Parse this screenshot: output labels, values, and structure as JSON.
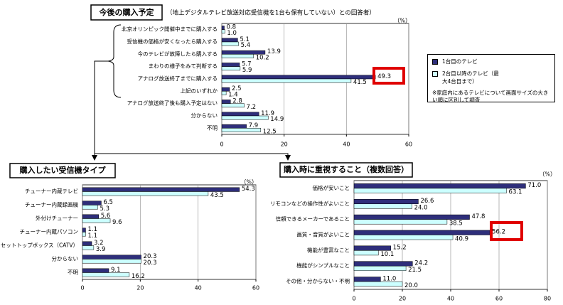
{
  "chart_data": [
    {
      "type": "bar",
      "orientation": "horizontal",
      "title": "今後の購入予定",
      "subtitle": "（地上デジタルテレビ放送対応受信機を1台も保有していない）との回答者）",
      "unit_label": "（%）",
      "categories": [
        "北京オリンピック開催中までに購入する",
        "受信機の価格が安くなったら購入する",
        "今のテレビが故障したら購入する",
        "まわりの様子をみて判断する",
        "アナログ放送終了までに購入する",
        "上記のいずれか",
        "アナログ放送終了後も購入予定はない",
        "分からない",
        "不明"
      ],
      "series": [
        {
          "name": "1台目のテレビ",
          "color": "#2e2e7a",
          "values": [
            0.8,
            5.1,
            13.9,
            5.7,
            49.3,
            2.5,
            2.8,
            11.9,
            7.9
          ],
          "value_labels": [
            "0.8",
            "5.1",
            "13.9",
            "5.7",
            "49.3",
            "2.5",
            "2.8",
            "11.9",
            "7.9"
          ]
        },
        {
          "name": "2台目以降のテレビ（最大4台目まで）",
          "color": "#ccffff",
          "values": [
            1.0,
            5.4,
            10.2,
            5.9,
            41.5,
            1.4,
            7.2,
            14.9,
            12.5
          ],
          "value_labels": [
            "1.0",
            "5.4",
            "10.2",
            "5.9",
            "41.5",
            "1.4",
            "7.2",
            "14.9",
            "12.5"
          ]
        }
      ],
      "note": "※家庭内にあるテレビについて画面サイズの大きい順に区別して調査",
      "xlim": [
        0,
        60
      ],
      "xticks": [
        0,
        20,
        40,
        60
      ],
      "grid": true
    },
    {
      "type": "bar",
      "orientation": "horizontal",
      "title": "購入したい受信機タイプ",
      "unit_label": "（%）",
      "categories": [
        "チューナー内蔵テレビ",
        "チューナー内蔵録画機",
        "外付けチューナー",
        "チューナー内蔵パソコン",
        "セットトップボックス（CATV）",
        "分からない",
        "不明"
      ],
      "series": [
        {
          "color": "#2e2e7a",
          "values": [
            54.3,
            6.5,
            5.6,
            1.1,
            3.2,
            20.3,
            9.1
          ],
          "value_labels": [
            "54.3",
            "6.5",
            "5.6",
            "1.1",
            "3.2",
            "20.3",
            "9.1"
          ]
        },
        {
          "color": "#ccffff",
          "values": [
            43.5,
            5.3,
            9.6,
            1.1,
            3.9,
            20.3,
            16.2
          ],
          "value_labels": [
            "43.5",
            "5.3",
            "9.6",
            "1.1",
            "3.9",
            "20.3",
            "16.2"
          ]
        }
      ],
      "xlim": [
        0,
        60
      ],
      "xticks": [
        0,
        20,
        40,
        60
      ],
      "grid": true
    },
    {
      "type": "bar",
      "orientation": "horizontal",
      "title": "購入時に重視すること（複数回答）",
      "unit_label": "（%）",
      "categories": [
        "価格が安いこと",
        "リモコンなどの操作性がよいこと",
        "信頼できるメーカーであること",
        "画質・音質がよいこと",
        "機能が豊富なこと",
        "機能がシンプルなこと",
        "その他・分からない・不明"
      ],
      "series": [
        {
          "color": "#2e2e7a",
          "values": [
            71.0,
            26.6,
            47.8,
            56.2,
            15.2,
            24.2,
            11.0
          ],
          "value_labels": [
            "71.0",
            "26.6",
            "47.8",
            "56.2",
            "15.2",
            "24.2",
            "11.0"
          ]
        },
        {
          "color": "#ccffff",
          "values": [
            63.1,
            24.0,
            38.5,
            40.9,
            10.1,
            21.5,
            20.0
          ],
          "value_labels": [
            "63.1",
            "24.0",
            "38.5",
            "40.9",
            "10.1",
            "21.5",
            "20.0"
          ]
        }
      ],
      "xlim": [
        0,
        80
      ],
      "xticks": [
        0,
        20,
        40,
        60,
        80
      ],
      "grid": true
    }
  ]
}
